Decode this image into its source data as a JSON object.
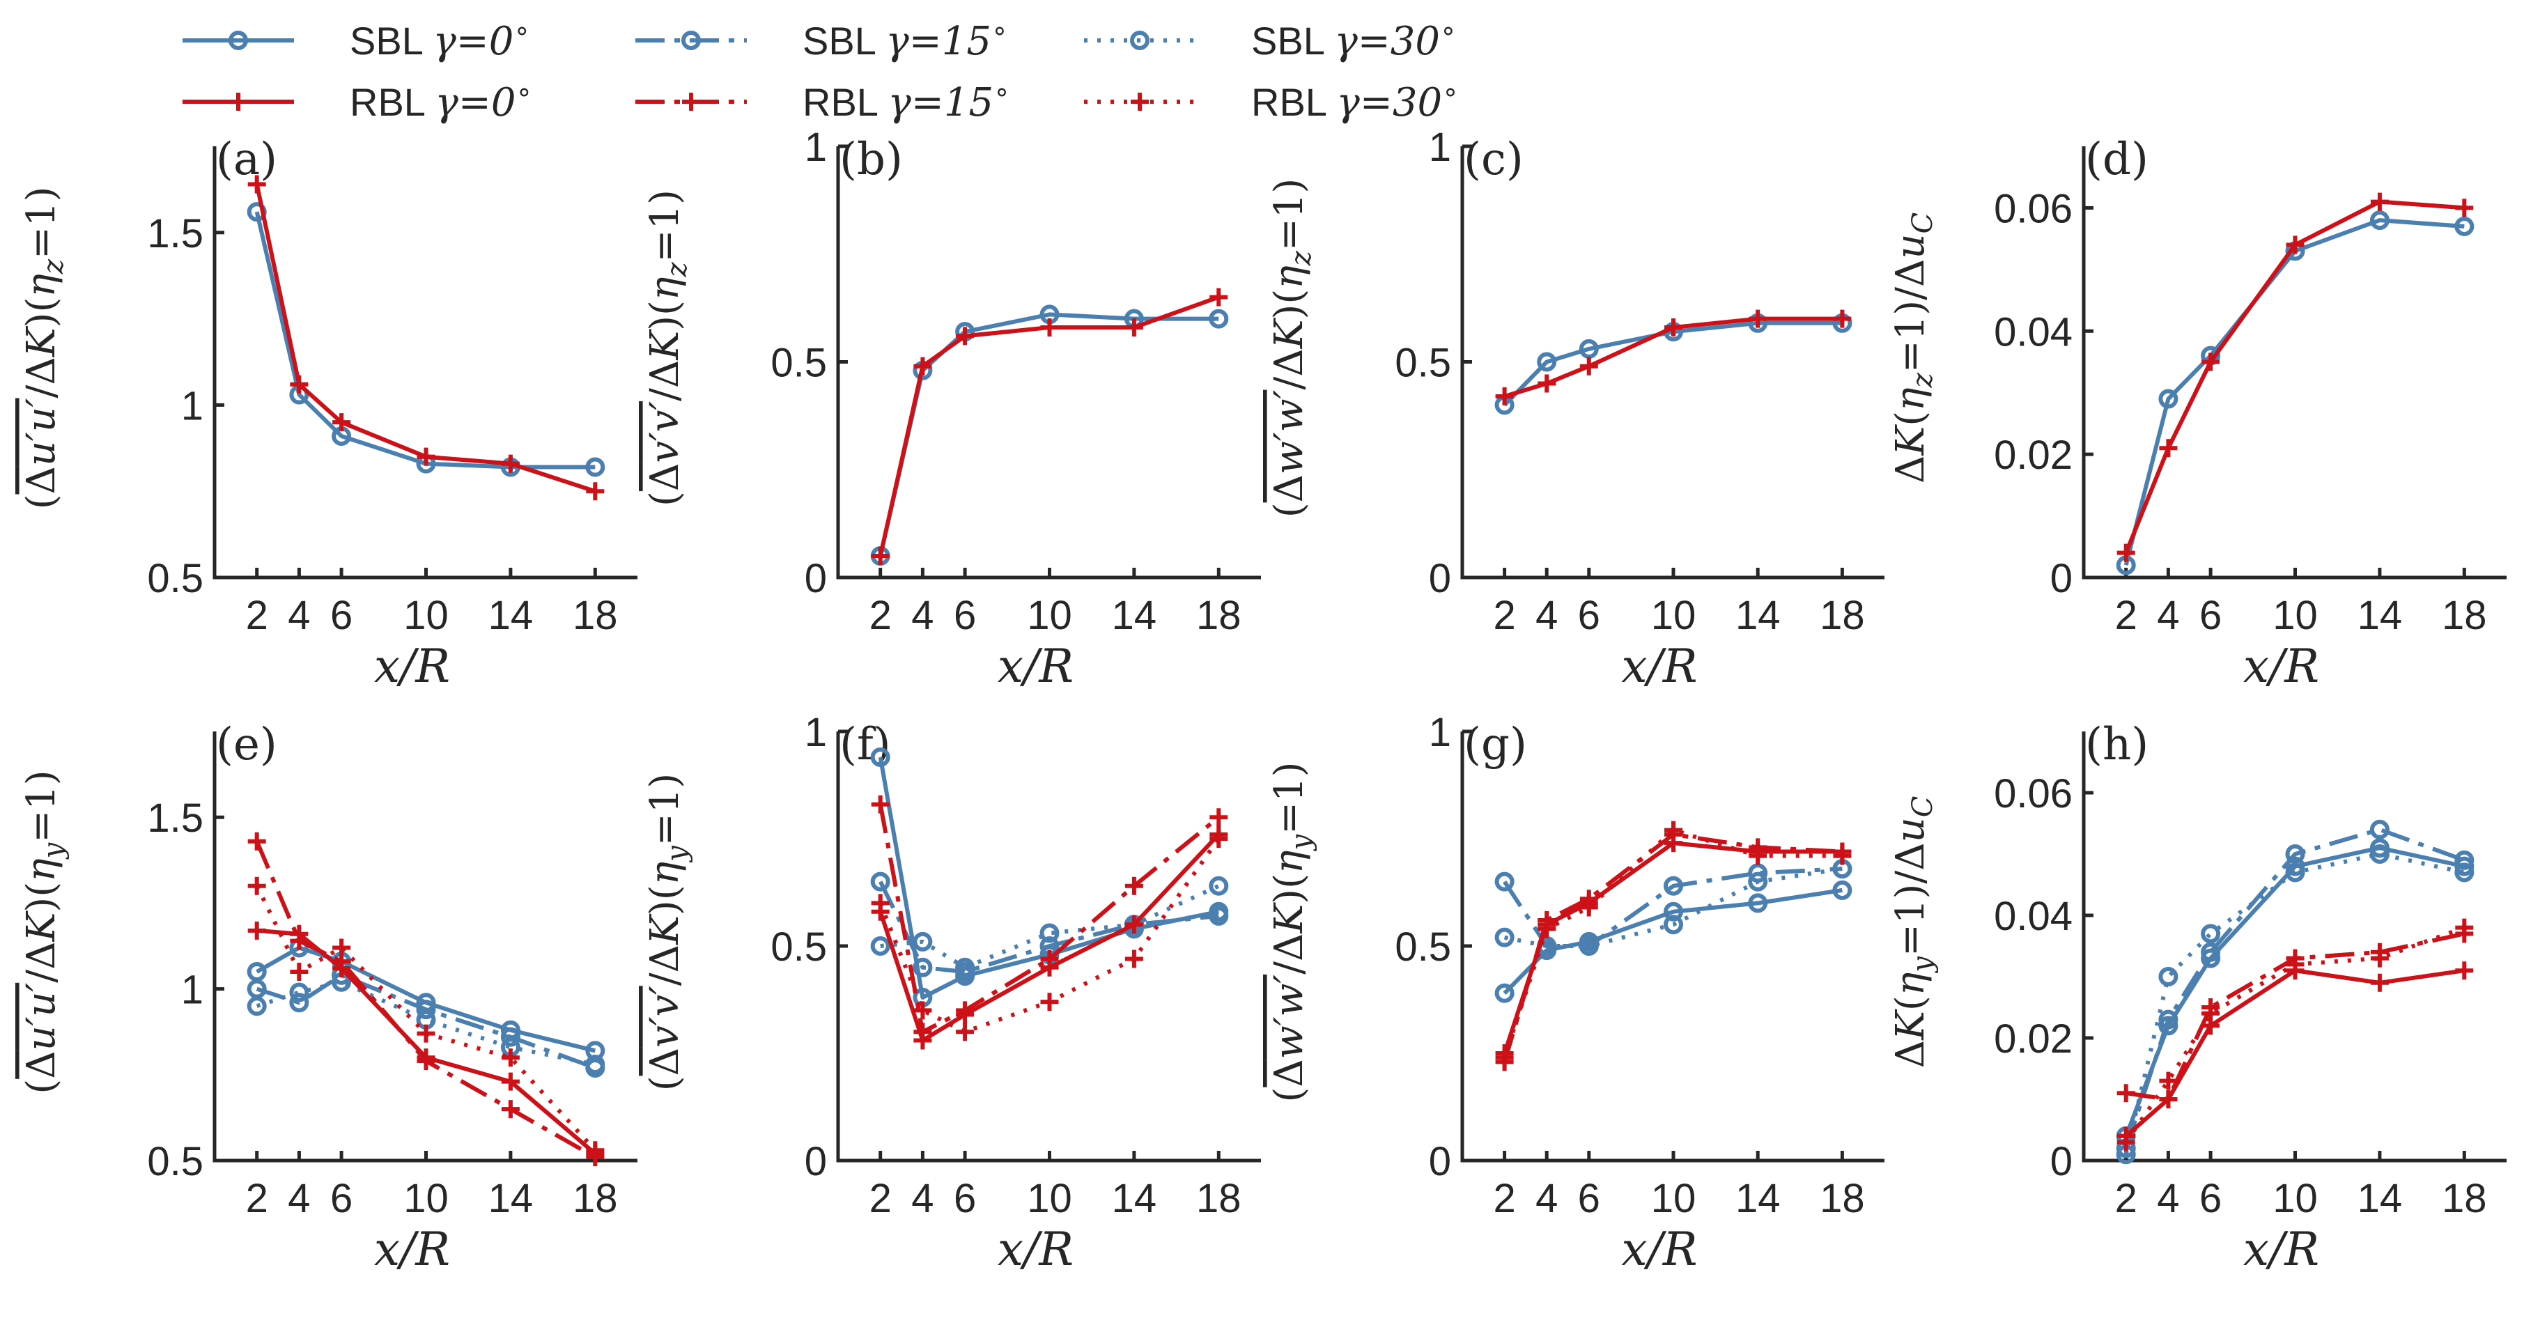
{
  "colors": {
    "sbl": "#4a7fb0",
    "rbl": "#cc1118",
    "axis": "#262626"
  },
  "legend": [
    {
      "id": "sbl0",
      "label": "SBL",
      "gamma_text": "γ=0",
      "degree": "∘",
      "group": "sbl",
      "style": "solid",
      "marker": "circle"
    },
    {
      "id": "rbl0",
      "label": "RBL",
      "gamma_text": "γ=0",
      "degree": "∘",
      "group": "rbl",
      "style": "solid",
      "marker": "plus"
    },
    {
      "id": "sbl15",
      "label": "SBL",
      "gamma_text": "γ=15",
      "degree": "∘",
      "group": "sbl",
      "style": "dashdot",
      "marker": "circle"
    },
    {
      "id": "rbl15",
      "label": "RBL",
      "gamma_text": "γ=15",
      "degree": "∘",
      "group": "rbl",
      "style": "dashdot",
      "marker": "plus"
    },
    {
      "id": "sbl30",
      "label": "SBL",
      "gamma_text": "γ=30",
      "degree": "∘",
      "group": "sbl",
      "style": "dotted",
      "marker": "circle"
    },
    {
      "id": "rbl30",
      "label": "RBL",
      "gamma_text": "γ=30",
      "degree": "∘",
      "group": "rbl",
      "style": "dotted",
      "marker": "plus"
    }
  ],
  "chart_data": [
    {
      "panel": "(a)",
      "type": "line",
      "xlabel": "x/R",
      "ylabel": "(Δu'u'/ΔK)(η_z=1)",
      "xticks": [
        2,
        4,
        6,
        10,
        14,
        18
      ],
      "yticks": [
        0.5,
        1,
        1.5
      ],
      "ytick_labels": [
        "0.5",
        "1",
        "1.5"
      ],
      "ylim": [
        0.5,
        1.75
      ],
      "series": [
        {
          "legend": "sbl0",
          "x": [
            2,
            4,
            6,
            10,
            14,
            18
          ],
          "y": [
            1.56,
            1.03,
            0.91,
            0.83,
            0.82,
            0.82
          ]
        },
        {
          "legend": "rbl0",
          "x": [
            2,
            4,
            6,
            10,
            14,
            18
          ],
          "y": [
            1.64,
            1.06,
            0.95,
            0.85,
            0.83,
            0.75
          ]
        }
      ]
    },
    {
      "panel": "(b)",
      "type": "line",
      "xlabel": "x/R",
      "ylabel": "(Δv'v'/ΔK)(η_z=1)",
      "xticks": [
        2,
        4,
        6,
        10,
        14,
        18
      ],
      "yticks": [
        0,
        0.5,
        1
      ],
      "ytick_labels": [
        "0",
        "0.5",
        "1"
      ],
      "ylim": [
        0,
        1
      ],
      "series": [
        {
          "legend": "sbl0",
          "x": [
            2,
            4,
            6,
            10,
            14,
            18
          ],
          "y": [
            0.05,
            0.48,
            0.57,
            0.61,
            0.6,
            0.6
          ]
        },
        {
          "legend": "rbl0",
          "x": [
            2,
            4,
            6,
            10,
            14,
            18
          ],
          "y": [
            0.05,
            0.49,
            0.56,
            0.58,
            0.58,
            0.65
          ]
        }
      ]
    },
    {
      "panel": "(c)",
      "type": "line",
      "xlabel": "x/R",
      "ylabel": "(Δw'w'/ΔK)(η_z=1)",
      "xticks": [
        2,
        4,
        6,
        10,
        14,
        18
      ],
      "yticks": [
        0,
        0.5,
        1
      ],
      "ytick_labels": [
        "0",
        "0.5",
        "1"
      ],
      "ylim": [
        0,
        1
      ],
      "series": [
        {
          "legend": "sbl0",
          "x": [
            2,
            4,
            6,
            10,
            14,
            18
          ],
          "y": [
            0.4,
            0.5,
            0.53,
            0.57,
            0.59,
            0.59
          ]
        },
        {
          "legend": "rbl0",
          "x": [
            2,
            4,
            6,
            10,
            14,
            18
          ],
          "y": [
            0.42,
            0.45,
            0.49,
            0.58,
            0.6,
            0.6
          ]
        }
      ]
    },
    {
      "panel": "(d)",
      "type": "line",
      "xlabel": "x/R",
      "ylabel": "ΔK(η_z=1)/Δu_C",
      "xticks": [
        2,
        4,
        6,
        10,
        14,
        18
      ],
      "yticks": [
        0,
        0.02,
        0.04,
        0.06
      ],
      "ytick_labels": [
        "0",
        "0.02",
        "0.04",
        "0.06"
      ],
      "ylim": [
        0,
        0.07
      ],
      "series": [
        {
          "legend": "sbl0",
          "x": [
            2,
            4,
            6,
            10,
            14,
            18
          ],
          "y": [
            0.002,
            0.029,
            0.036,
            0.053,
            0.058,
            0.057
          ]
        },
        {
          "legend": "rbl0",
          "x": [
            2,
            4,
            6,
            10,
            14,
            18
          ],
          "y": [
            0.004,
            0.021,
            0.035,
            0.054,
            0.061,
            0.06
          ]
        }
      ]
    },
    {
      "panel": "(e)",
      "type": "line",
      "xlabel": "x/R",
      "ylabel": "(Δu'u'/ΔK)(η_y=1)",
      "xticks": [
        2,
        4,
        6,
        10,
        14,
        18
      ],
      "yticks": [
        0.5,
        1,
        1.5
      ],
      "ytick_labels": [
        "0.5",
        "1",
        "1.5"
      ],
      "ylim": [
        0.5,
        1.75
      ],
      "series": [
        {
          "legend": "sbl0",
          "x": [
            2,
            4,
            6,
            10,
            14,
            18
          ],
          "y": [
            1.05,
            1.12,
            1.08,
            0.96,
            0.88,
            0.82
          ]
        },
        {
          "legend": "sbl15",
          "x": [
            2,
            4,
            6,
            10,
            14,
            18
          ],
          "y": [
            1.0,
            0.96,
            1.04,
            0.94,
            0.86,
            0.77
          ]
        },
        {
          "legend": "sbl30",
          "x": [
            2,
            4,
            6,
            10,
            14,
            18
          ],
          "y": [
            0.95,
            0.99,
            1.02,
            0.91,
            0.83,
            0.78
          ]
        },
        {
          "legend": "rbl0",
          "x": [
            2,
            4,
            6,
            10,
            14,
            18
          ],
          "y": [
            1.17,
            1.16,
            1.06,
            0.8,
            0.73,
            0.52
          ]
        },
        {
          "legend": "rbl15",
          "x": [
            2,
            4,
            6,
            10,
            14,
            18
          ],
          "y": [
            1.43,
            1.14,
            1.08,
            0.79,
            0.65,
            0.51
          ]
        },
        {
          "legend": "rbl30",
          "x": [
            2,
            4,
            6,
            10,
            14,
            18
          ],
          "y": [
            1.3,
            1.05,
            1.12,
            0.87,
            0.8,
            0.53
          ]
        }
      ]
    },
    {
      "panel": "(f)",
      "type": "line",
      "xlabel": "x/R",
      "ylabel": "(Δv'v'/ΔK)(η_y=1)",
      "xticks": [
        2,
        4,
        6,
        10,
        14,
        18
      ],
      "yticks": [
        0,
        0.5,
        1
      ],
      "ytick_labels": [
        "0",
        "0.5",
        "1"
      ],
      "ylim": [
        0,
        1
      ],
      "series": [
        {
          "legend": "sbl0",
          "x": [
            2,
            4,
            6,
            10,
            14,
            18
          ],
          "y": [
            0.94,
            0.38,
            0.43,
            0.48,
            0.54,
            0.58
          ]
        },
        {
          "legend": "sbl15",
          "x": [
            2,
            4,
            6,
            10,
            14,
            18
          ],
          "y": [
            0.65,
            0.45,
            0.44,
            0.5,
            0.55,
            0.57
          ]
        },
        {
          "legend": "sbl30",
          "x": [
            2,
            4,
            6,
            10,
            14,
            18
          ],
          "y": [
            0.5,
            0.51,
            0.45,
            0.53,
            0.55,
            0.64
          ]
        },
        {
          "legend": "rbl0",
          "x": [
            2,
            4,
            6,
            10,
            14,
            18
          ],
          "y": [
            0.58,
            0.28,
            0.34,
            0.45,
            0.55,
            0.76
          ]
        },
        {
          "legend": "rbl15",
          "x": [
            2,
            4,
            6,
            10,
            14,
            18
          ],
          "y": [
            0.83,
            0.3,
            0.35,
            0.47,
            0.64,
            0.8
          ]
        },
        {
          "legend": "rbl30",
          "x": [
            2,
            4,
            6,
            10,
            14,
            18
          ],
          "y": [
            0.6,
            0.35,
            0.3,
            0.37,
            0.47,
            0.75
          ]
        }
      ]
    },
    {
      "panel": "(g)",
      "type": "line",
      "xlabel": "x/R",
      "ylabel": "(Δw'w'/ΔK)(η_y=1)",
      "xticks": [
        2,
        4,
        6,
        10,
        14,
        18
      ],
      "yticks": [
        0,
        0.5,
        1
      ],
      "ytick_labels": [
        "0",
        "0.5",
        "1"
      ],
      "ylim": [
        0,
        1
      ],
      "series": [
        {
          "legend": "sbl0",
          "x": [
            2,
            4,
            6,
            10,
            14,
            18
          ],
          "y": [
            0.39,
            0.49,
            0.51,
            0.58,
            0.6,
            0.63
          ]
        },
        {
          "legend": "sbl15",
          "x": [
            2,
            4,
            6,
            10,
            14,
            18
          ],
          "y": [
            0.65,
            0.5,
            0.5,
            0.64,
            0.67,
            0.68
          ]
        },
        {
          "legend": "sbl30",
          "x": [
            2,
            4,
            6,
            10,
            14,
            18
          ],
          "y": [
            0.52,
            0.5,
            0.5,
            0.55,
            0.65,
            0.68
          ]
        },
        {
          "legend": "rbl0",
          "x": [
            2,
            4,
            6,
            10,
            14,
            18
          ],
          "y": [
            0.25,
            0.55,
            0.6,
            0.74,
            0.72,
            0.72
          ]
        },
        {
          "legend": "rbl15",
          "x": [
            2,
            4,
            6,
            10,
            14,
            18
          ],
          "y": [
            0.23,
            0.56,
            0.61,
            0.76,
            0.73,
            0.72
          ]
        },
        {
          "legend": "rbl30",
          "x": [
            2,
            4,
            6,
            10,
            14,
            18
          ],
          "y": [
            0.24,
            0.54,
            0.59,
            0.77,
            0.71,
            0.71
          ]
        }
      ]
    },
    {
      "panel": "(h)",
      "type": "line",
      "xlabel": "x/R",
      "ylabel": "ΔK(η_y=1)/Δu_C",
      "xticks": [
        2,
        4,
        6,
        10,
        14,
        18
      ],
      "yticks": [
        0,
        0.02,
        0.04,
        0.06
      ],
      "ytick_labels": [
        "0",
        "0.02",
        "0.04",
        "0.06"
      ],
      "ylim": [
        0,
        0.07
      ],
      "series": [
        {
          "legend": "sbl0",
          "x": [
            2,
            4,
            6,
            10,
            14,
            18
          ],
          "y": [
            0.004,
            0.022,
            0.033,
            0.048,
            0.051,
            0.048
          ]
        },
        {
          "legend": "sbl15",
          "x": [
            2,
            4,
            6,
            10,
            14,
            18
          ],
          "y": [
            0.002,
            0.023,
            0.034,
            0.05,
            0.054,
            0.049
          ]
        },
        {
          "legend": "sbl30",
          "x": [
            2,
            4,
            6,
            10,
            14,
            18
          ],
          "y": [
            0.001,
            0.03,
            0.037,
            0.047,
            0.05,
            0.047
          ]
        },
        {
          "legend": "rbl0",
          "x": [
            2,
            4,
            6,
            10,
            14,
            18
          ],
          "y": [
            0.004,
            0.01,
            0.022,
            0.031,
            0.029,
            0.031
          ]
        },
        {
          "legend": "rbl15",
          "x": [
            2,
            4,
            6,
            10,
            14,
            18
          ],
          "y": [
            0.011,
            0.01,
            0.025,
            0.033,
            0.034,
            0.037
          ]
        },
        {
          "legend": "rbl30",
          "x": [
            2,
            4,
            6,
            10,
            14,
            18
          ],
          "y": [
            0.003,
            0.013,
            0.024,
            0.032,
            0.033,
            0.038
          ]
        }
      ]
    }
  ]
}
